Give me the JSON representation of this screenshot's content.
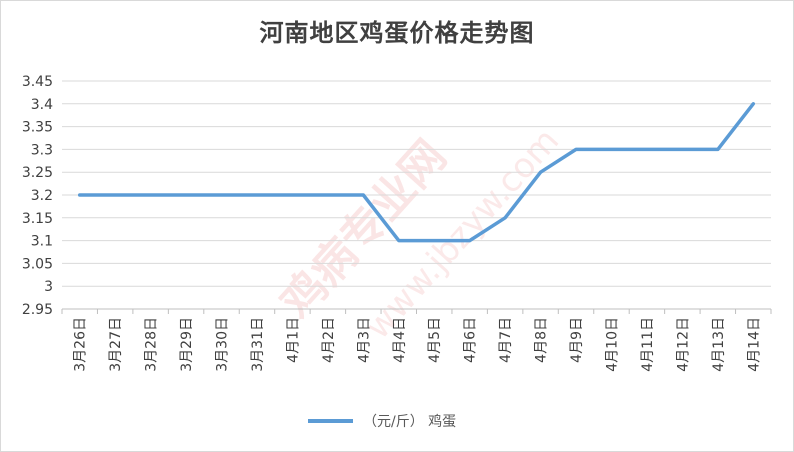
{
  "chart_data": {
    "type": "line",
    "title": "河南地区鸡蛋价格走势图",
    "categories": [
      "3月26日",
      "3月27日",
      "3月28日",
      "3月29日",
      "3月30日",
      "3月31日",
      "4月1日",
      "4月2日",
      "4月3日",
      "4月4日",
      "4月5日",
      "4月6日",
      "4月7日",
      "4月8日",
      "4月9日",
      "4月10日",
      "4月11日",
      "4月12日",
      "4月13日",
      "4月14日"
    ],
    "series": [
      {
        "name": "（元/斤） 鸡蛋",
        "values": [
          3.2,
          3.2,
          3.2,
          3.2,
          3.2,
          3.2,
          3.2,
          3.2,
          3.2,
          3.1,
          3.1,
          3.1,
          3.15,
          3.25,
          3.3,
          3.3,
          3.3,
          3.3,
          3.3,
          3.4
        ],
        "color": "#5b9bd5"
      }
    ],
    "yticks": [
      "2.95",
      "3",
      "3.05",
      "3.1",
      "3.15",
      "3.2",
      "3.25",
      "3.3",
      "3.35",
      "3.4",
      "3.45"
    ],
    "ylim": [
      2.95,
      3.45
    ],
    "grid": true,
    "legend_position": "bottom",
    "watermark": [
      "鸡病专业网",
      "www.jbzyw.com"
    ]
  }
}
